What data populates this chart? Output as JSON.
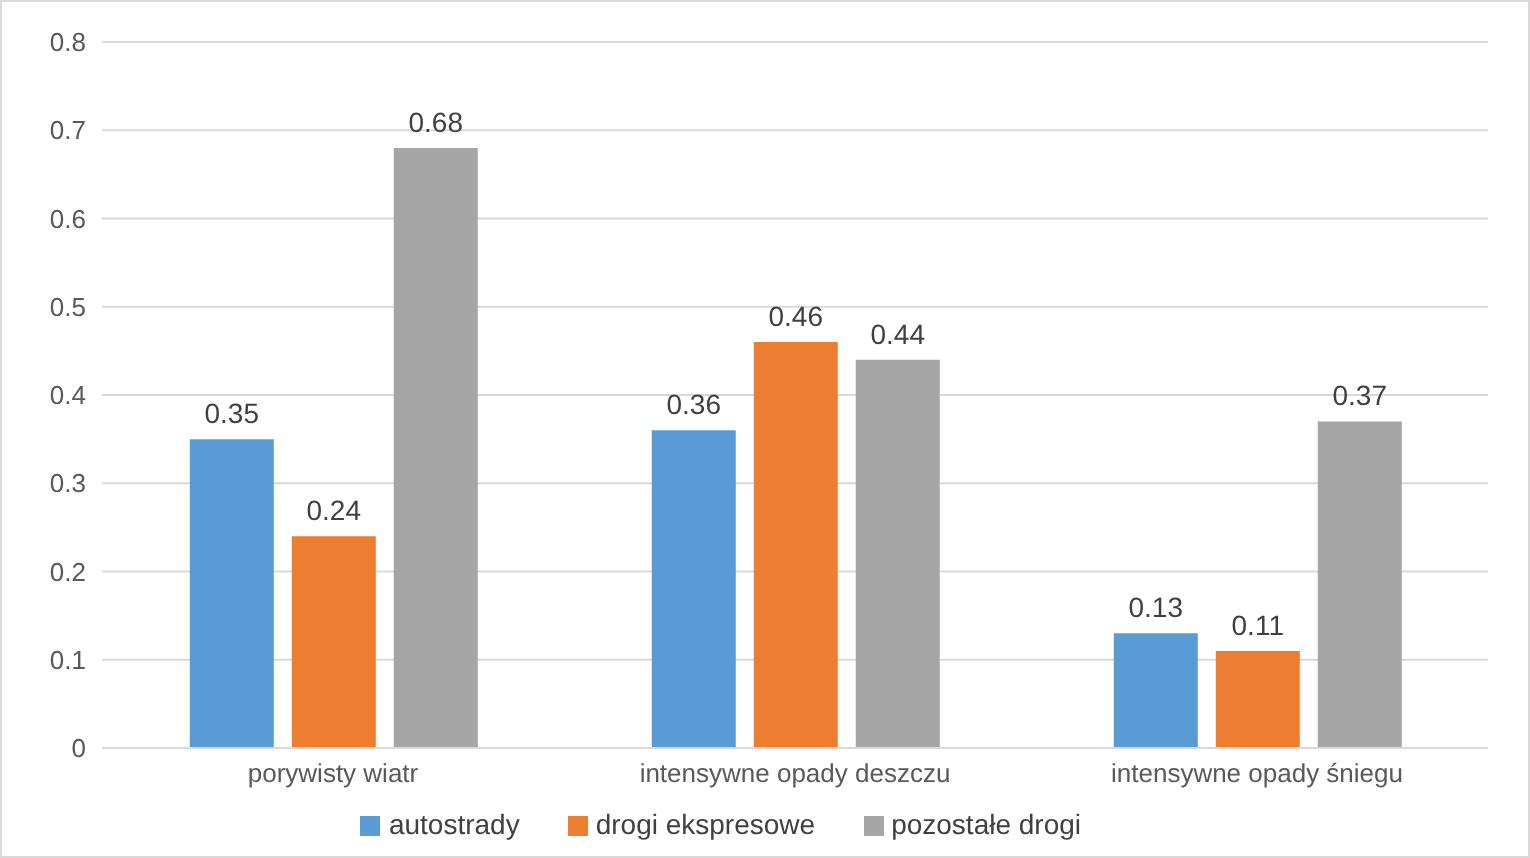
{
  "chart_data": {
    "type": "bar",
    "categories": [
      "porywisty wiatr",
      "intensywne opady deszczu",
      "intensywne opady śniegu"
    ],
    "series": [
      {
        "name": "autostrady",
        "color": "#5b9bd5",
        "values": [
          0.35,
          0.36,
          0.13
        ]
      },
      {
        "name": "drogi ekspresowe",
        "color": "#ed7d31",
        "values": [
          0.24,
          0.46,
          0.11
        ]
      },
      {
        "name": "pozostałe drogi",
        "color": "#a5a5a5",
        "values": [
          0.68,
          0.44,
          0.37
        ]
      }
    ],
    "ylim": [
      0,
      0.8
    ],
    "yticks": [
      0,
      0.1,
      0.2,
      0.3,
      0.4,
      0.5,
      0.6,
      0.7,
      0.8
    ],
    "grid": "y",
    "legend": "bottom",
    "data_labels": true
  }
}
